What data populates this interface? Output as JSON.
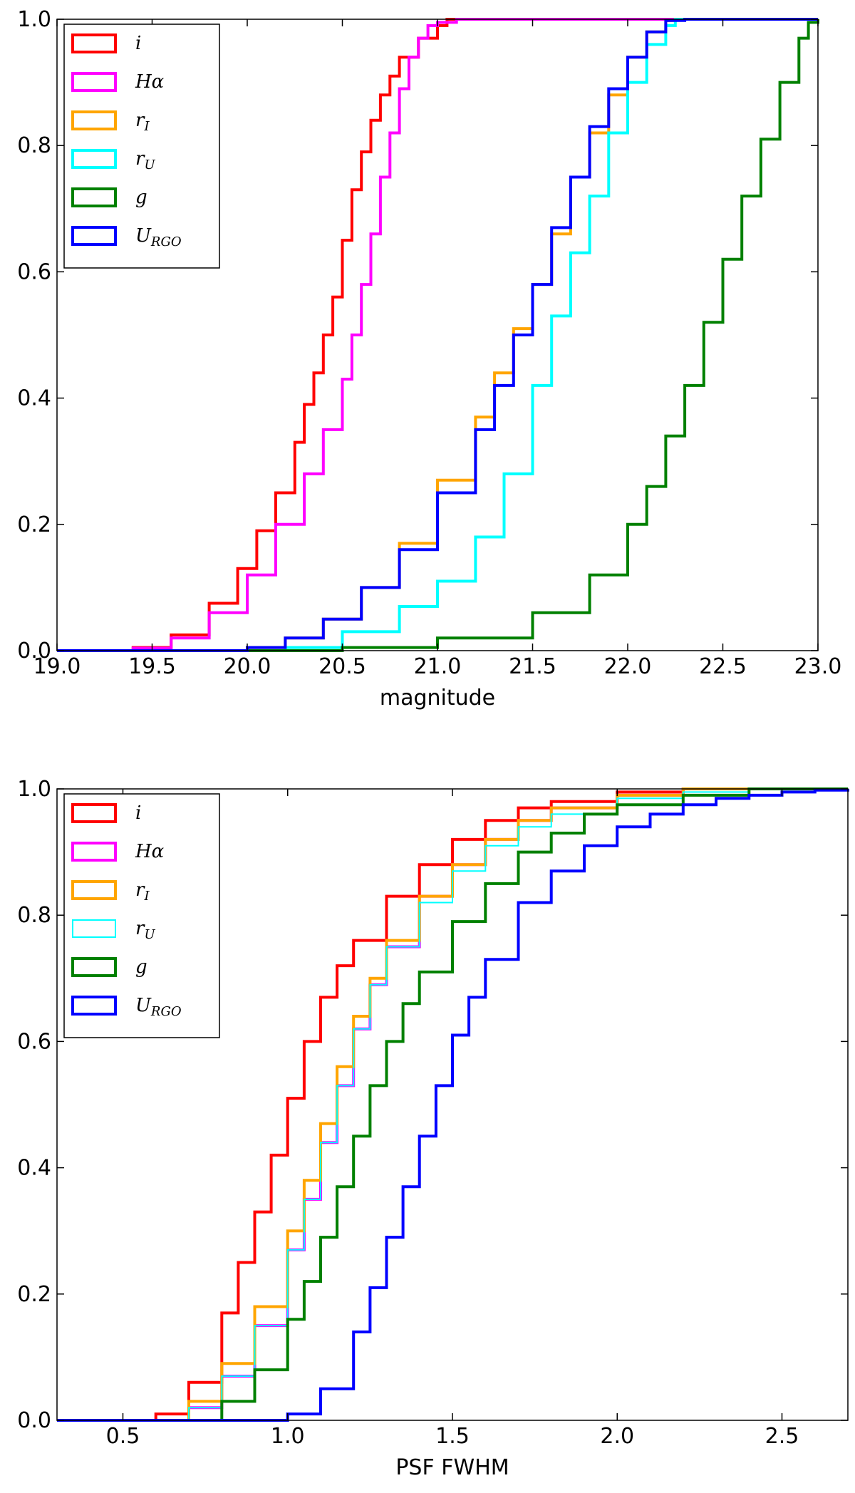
{
  "colors": {
    "i": "#ff0000",
    "halpha": "#ff00ff",
    "rI": "#ffa500",
    "rU": "#00ffff",
    "g": "#008000",
    "URGO": "#0000ff"
  },
  "chart_data": [
    {
      "type": "line",
      "step": true,
      "title": "",
      "xlabel": "magnitude",
      "ylabel": "",
      "xlim": [
        19.0,
        23.0
      ],
      "ylim": [
        0.0,
        1.0
      ],
      "xticks": [
        "19.0",
        "19.5",
        "20.0",
        "20.5",
        "21.0",
        "21.5",
        "22.0",
        "22.5",
        "23.0"
      ],
      "yticks": [
        "0.0",
        "0.2",
        "0.4",
        "0.6",
        "0.8",
        "1.0"
      ],
      "grid": false,
      "legend_position": "top-left",
      "series": [
        {
          "key": "i",
          "label": "i",
          "sub": "",
          "x": [
            19.0,
            19.4,
            19.6,
            19.8,
            19.95,
            20.05,
            20.15,
            20.25,
            20.3,
            20.35,
            20.4,
            20.45,
            20.5,
            20.55,
            20.6,
            20.65,
            20.7,
            20.75,
            20.8,
            20.9,
            21.0,
            21.05,
            23.0
          ],
          "y": [
            0.0,
            0.005,
            0.025,
            0.075,
            0.13,
            0.19,
            0.25,
            0.33,
            0.39,
            0.44,
            0.5,
            0.56,
            0.65,
            0.73,
            0.79,
            0.84,
            0.88,
            0.91,
            0.94,
            0.97,
            0.99,
            1.0,
            1.0
          ]
        },
        {
          "key": "halpha",
          "label": "Hα",
          "sub": "",
          "x": [
            19.0,
            19.4,
            19.6,
            19.8,
            20.0,
            20.15,
            20.3,
            20.4,
            20.5,
            20.55,
            20.6,
            20.65,
            20.7,
            20.75,
            20.8,
            20.85,
            20.9,
            20.95,
            21.0,
            21.1,
            23.0
          ],
          "y": [
            0.0,
            0.004,
            0.02,
            0.06,
            0.12,
            0.2,
            0.28,
            0.35,
            0.43,
            0.5,
            0.58,
            0.66,
            0.75,
            0.82,
            0.89,
            0.94,
            0.97,
            0.99,
            0.995,
            1.0,
            1.0
          ]
        },
        {
          "key": "rI",
          "label": "r",
          "sub": "I",
          "x": [
            19.0,
            19.8,
            20.0,
            20.2,
            20.4,
            20.6,
            20.8,
            21.0,
            21.2,
            21.3,
            21.4,
            21.5,
            21.6,
            21.7,
            21.8,
            21.9,
            22.0,
            22.1,
            22.2,
            22.25,
            23.0
          ],
          "y": [
            0.0,
            0.0,
            0.005,
            0.02,
            0.05,
            0.1,
            0.17,
            0.27,
            0.37,
            0.44,
            0.51,
            0.58,
            0.66,
            0.75,
            0.82,
            0.88,
            0.94,
            0.98,
            0.998,
            1.0,
            1.0
          ]
        },
        {
          "key": "rU",
          "label": "r",
          "sub": "U",
          "x": [
            19.0,
            20.0,
            20.2,
            20.5,
            20.8,
            21.0,
            21.2,
            21.35,
            21.5,
            21.6,
            21.7,
            21.8,
            21.9,
            22.0,
            22.1,
            22.2,
            22.25,
            23.0
          ],
          "y": [
            0.0,
            0.0,
            0.005,
            0.03,
            0.07,
            0.11,
            0.18,
            0.28,
            0.42,
            0.53,
            0.63,
            0.72,
            0.82,
            0.9,
            0.96,
            0.99,
            1.0,
            1.0
          ]
        },
        {
          "key": "g",
          "label": "g",
          "sub": "",
          "x": [
            19.0,
            20.0,
            20.5,
            21.0,
            21.5,
            21.8,
            22.0,
            22.1,
            22.2,
            22.3,
            22.4,
            22.5,
            22.6,
            22.7,
            22.8,
            22.9,
            22.95,
            23.0
          ],
          "y": [
            0.0,
            0.0,
            0.005,
            0.02,
            0.06,
            0.12,
            0.2,
            0.26,
            0.34,
            0.42,
            0.52,
            0.62,
            0.72,
            0.81,
            0.9,
            0.97,
            0.995,
            1.0
          ]
        },
        {
          "key": "URGO",
          "label": "U",
          "sub": "RGO",
          "x": [
            19.0,
            19.8,
            20.0,
            20.2,
            20.4,
            20.6,
            20.8,
            21.0,
            21.2,
            21.3,
            21.4,
            21.5,
            21.6,
            21.7,
            21.8,
            21.9,
            22.0,
            22.1,
            22.2,
            22.3,
            23.0
          ],
          "y": [
            0.0,
            0.0,
            0.005,
            0.02,
            0.05,
            0.1,
            0.16,
            0.25,
            0.35,
            0.42,
            0.5,
            0.58,
            0.67,
            0.75,
            0.83,
            0.89,
            0.94,
            0.98,
            0.998,
            1.0,
            1.0
          ]
        }
      ]
    },
    {
      "type": "line",
      "step": true,
      "title": "",
      "xlabel": "PSF FWHM",
      "ylabel": "",
      "xlim": [
        0.3,
        2.7
      ],
      "ylim": [
        0.0,
        1.0
      ],
      "xticks": [
        "0.5",
        "1.0",
        "1.5",
        "2.0",
        "2.5"
      ],
      "yticks": [
        "0.0",
        "0.2",
        "0.4",
        "0.6",
        "0.8",
        "1.0"
      ],
      "grid": false,
      "legend_position": "top-left",
      "series": [
        {
          "key": "i",
          "label": "i",
          "sub": "",
          "x": [
            0.3,
            0.5,
            0.6,
            0.7,
            0.8,
            0.85,
            0.9,
            0.95,
            1.0,
            1.05,
            1.1,
            1.15,
            1.2,
            1.3,
            1.4,
            1.5,
            1.6,
            1.7,
            1.8,
            2.0,
            2.2,
            2.7
          ],
          "y": [
            0.0,
            0.0,
            0.01,
            0.06,
            0.17,
            0.25,
            0.33,
            0.42,
            0.51,
            0.6,
            0.67,
            0.72,
            0.76,
            0.83,
            0.88,
            0.92,
            0.95,
            0.97,
            0.98,
            0.995,
            1.0,
            1.0
          ]
        },
        {
          "key": "halpha",
          "label": "Hα",
          "sub": "",
          "x": [
            0.3,
            0.6,
            0.7,
            0.8,
            0.9,
            1.0,
            1.05,
            1.1,
            1.15,
            1.2,
            1.25,
            1.3,
            1.4,
            1.5,
            1.6,
            1.7,
            1.8,
            2.0,
            2.2,
            2.7
          ],
          "y": [
            0.0,
            0.0,
            0.02,
            0.07,
            0.15,
            0.27,
            0.35,
            0.44,
            0.53,
            0.62,
            0.69,
            0.75,
            0.83,
            0.88,
            0.92,
            0.95,
            0.97,
            0.99,
            1.0,
            1.0
          ]
        },
        {
          "key": "rI",
          "label": "r",
          "sub": "I",
          "x": [
            0.3,
            0.6,
            0.7,
            0.8,
            0.9,
            1.0,
            1.05,
            1.1,
            1.15,
            1.2,
            1.25,
            1.3,
            1.4,
            1.5,
            1.6,
            1.7,
            1.8,
            2.0,
            2.2,
            2.7
          ],
          "y": [
            0.0,
            0.0,
            0.03,
            0.09,
            0.18,
            0.3,
            0.38,
            0.47,
            0.56,
            0.64,
            0.7,
            0.76,
            0.83,
            0.88,
            0.92,
            0.95,
            0.97,
            0.99,
            1.0,
            1.0
          ]
        },
        {
          "key": "rU",
          "label": "r",
          "sub": "U",
          "x": [
            0.3,
            0.6,
            0.7,
            0.8,
            0.9,
            1.0,
            1.05,
            1.1,
            1.15,
            1.2,
            1.25,
            1.3,
            1.4,
            1.5,
            1.6,
            1.7,
            1.8,
            2.0,
            2.2,
            2.4,
            2.7
          ],
          "y": [
            0.0,
            0.0,
            0.02,
            0.07,
            0.15,
            0.27,
            0.35,
            0.44,
            0.53,
            0.62,
            0.69,
            0.75,
            0.82,
            0.87,
            0.91,
            0.94,
            0.96,
            0.985,
            0.995,
            1.0,
            1.0
          ]
        },
        {
          "key": "g",
          "label": "g",
          "sub": "",
          "x": [
            0.3,
            0.7,
            0.8,
            0.9,
            1.0,
            1.05,
            1.1,
            1.15,
            1.2,
            1.25,
            1.3,
            1.35,
            1.4,
            1.5,
            1.6,
            1.7,
            1.8,
            1.9,
            2.0,
            2.2,
            2.4,
            2.7
          ],
          "y": [
            0.0,
            0.0,
            0.03,
            0.08,
            0.16,
            0.22,
            0.29,
            0.37,
            0.45,
            0.53,
            0.6,
            0.66,
            0.71,
            0.79,
            0.85,
            0.9,
            0.93,
            0.96,
            0.975,
            0.99,
            1.0,
            1.0
          ]
        },
        {
          "key": "URGO",
          "label": "U",
          "sub": "RGO",
          "x": [
            0.3,
            0.9,
            1.0,
            1.1,
            1.2,
            1.25,
            1.3,
            1.35,
            1.4,
            1.45,
            1.5,
            1.55,
            1.6,
            1.7,
            1.8,
            1.9,
            2.0,
            2.1,
            2.2,
            2.3,
            2.4,
            2.5,
            2.6,
            2.7
          ],
          "y": [
            0.0,
            0.0,
            0.01,
            0.05,
            0.14,
            0.21,
            0.29,
            0.37,
            0.45,
            0.53,
            0.61,
            0.67,
            0.73,
            0.82,
            0.87,
            0.91,
            0.94,
            0.96,
            0.975,
            0.985,
            0.99,
            0.995,
            0.998,
            1.0
          ]
        }
      ]
    }
  ]
}
